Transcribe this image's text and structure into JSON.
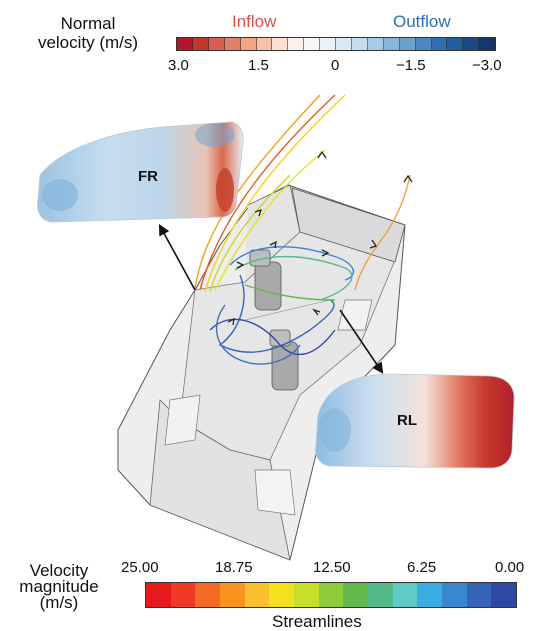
{
  "normal_legend": {
    "title_line1": "Normal",
    "title_line2": "velocity (m/s)",
    "inflow_label": "Inflow",
    "outflow_label": "Outflow",
    "inflow_color": "#d9534f",
    "outflow_color": "#2f6fb5",
    "ticks": [
      "3.0",
      "1.5",
      "0",
      "−1.5",
      "−3.0"
    ],
    "colors": [
      "#b2182b",
      "#c0392b",
      "#d6604d",
      "#e28068",
      "#f4a582",
      "#f7c2a8",
      "#fbe0d2",
      "#fdf0ea",
      "#f7f7f7",
      "#eaf2f8",
      "#d8e9f3",
      "#c3dcee",
      "#a7cbe4",
      "#87b6d9",
      "#6aa2cc",
      "#4a88bf",
      "#2f6fb0",
      "#245d9c",
      "#1a4a85",
      "#12386c"
    ]
  },
  "vehicle": {
    "panel_fr_label": "FR",
    "panel_rl_label": "RL"
  },
  "speed_legend": {
    "title_line1": "Velocity",
    "title_line2": "magnitude",
    "title_line3": "(m/s)",
    "ticks": [
      "25.00",
      "18.75",
      "12.50",
      "6.25",
      "0.00"
    ],
    "caption": "Streamlines",
    "colors": [
      "#e41a1c",
      "#ec3a26",
      "#f36b24",
      "#f9921f",
      "#fbc02d",
      "#f4e11e",
      "#c7df2b",
      "#8fcc3a",
      "#63b84c",
      "#55b98a",
      "#5fcac8",
      "#3aaee4",
      "#3a86cf",
      "#3564b8",
      "#2f48a3"
    ]
  }
}
